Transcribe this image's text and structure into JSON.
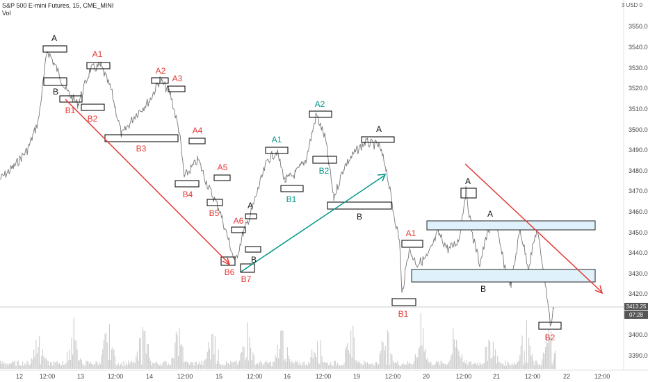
{
  "header": {
    "symbol": "S&P 500 E-mini Futures, 15, CME_MINI",
    "indicator": "Vol"
  },
  "currency": "3 USD 0",
  "price_axis": {
    "ticks": [
      "3550.00",
      "3540.00",
      "3530.00",
      "3520.00",
      "3510.00",
      "3500.00",
      "3490.00",
      "3480.00",
      "3470.00",
      "3460.00",
      "3450.00",
      "3440.00",
      "3430.00",
      "3420.00",
      "3410.00",
      "3400.00",
      "3390.00"
    ]
  },
  "time_axis": {
    "ticks": [
      "12",
      "12:00",
      "13",
      "12:00",
      "14",
      "12:00",
      "15",
      "12:00",
      "16",
      "12:00",
      "19",
      "12:00",
      "20",
      "12:00",
      "21",
      "12:00",
      "22",
      "12:00"
    ]
  },
  "last_price": "3413.25",
  "countdown": "07:28",
  "colors": {
    "red": "#e53935",
    "teal": "#009688",
    "black": "#111111",
    "price_line": "#555555",
    "volume": "#cfcfcf",
    "zone": "#dff1fb"
  },
  "annotations": [
    {
      "text": "A",
      "color": "black"
    },
    {
      "text": "B",
      "color": "black"
    },
    {
      "text": "A1",
      "color": "red"
    },
    {
      "text": "B1",
      "color": "red"
    },
    {
      "text": "B2",
      "color": "red"
    },
    {
      "text": "A2",
      "color": "red"
    },
    {
      "text": "A3",
      "color": "red"
    },
    {
      "text": "B3",
      "color": "red"
    },
    {
      "text": "A4",
      "color": "red"
    },
    {
      "text": "B4",
      "color": "red"
    },
    {
      "text": "A5",
      "color": "red"
    },
    {
      "text": "B5",
      "color": "red"
    },
    {
      "text": "A6",
      "color": "red"
    },
    {
      "text": "B6",
      "color": "red"
    },
    {
      "text": "B7",
      "color": "red"
    },
    {
      "text": "A",
      "color": "black"
    },
    {
      "text": "B",
      "color": "black"
    },
    {
      "text": "A1",
      "color": "teal"
    },
    {
      "text": "B1",
      "color": "teal"
    },
    {
      "text": "A2",
      "color": "teal"
    },
    {
      "text": "B2",
      "color": "teal"
    },
    {
      "text": "A",
      "color": "black"
    },
    {
      "text": "B",
      "color": "black"
    },
    {
      "text": "A1",
      "color": "red"
    },
    {
      "text": "B1",
      "color": "red"
    },
    {
      "text": "A",
      "color": "black"
    },
    {
      "text": "A",
      "color": "black"
    },
    {
      "text": "B",
      "color": "black"
    },
    {
      "text": "B2",
      "color": "red"
    }
  ]
}
